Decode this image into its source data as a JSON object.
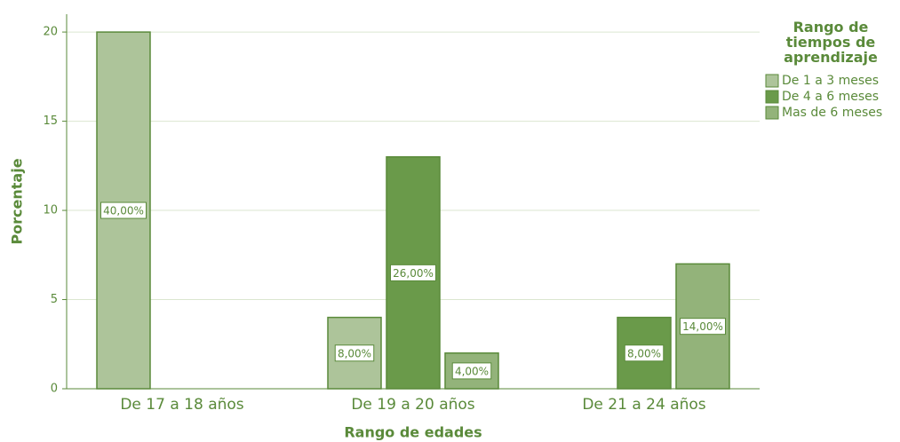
{
  "chart_data": {
    "type": "bar",
    "x_label": "Rango de edades",
    "y_label": "Porcentaje",
    "legend_title": "Rango de tiempos de aprendizaje",
    "legend": "right",
    "categories": [
      "De 17 a 18 años",
      "De 19 a 20 años",
      "De 21 a 24 años"
    ],
    "series": [
      {
        "name": "De 1 a 3 meses",
        "color": "#adc49a",
        "values": [
          20,
          4,
          null
        ],
        "bar_labels": [
          "40,00%",
          "8,00%",
          null
        ]
      },
      {
        "name": "De 4 a 6 meses",
        "color": "#6a9a4a",
        "values": [
          null,
          13,
          4
        ],
        "bar_labels": [
          null,
          "26,00%",
          "8,00%"
        ]
      },
      {
        "name": "Mas de 6 meses",
        "color": "#93b37a",
        "values": [
          null,
          2,
          7
        ],
        "bar_labels": [
          null,
          "4,00%",
          "14,00%"
        ]
      }
    ],
    "ylim": [
      0,
      21
    ],
    "yticks": [
      0,
      5,
      10,
      15,
      20
    ],
    "grid": true
  }
}
